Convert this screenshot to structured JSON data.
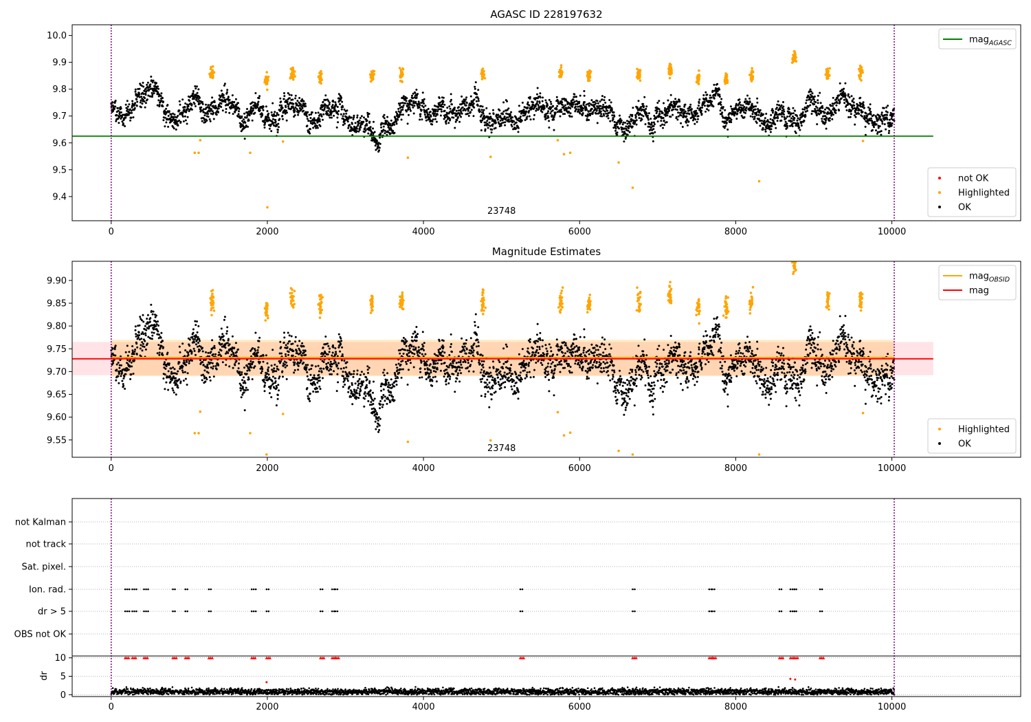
{
  "colors": {
    "ok": "#000000",
    "highlighted": "#ffa500",
    "not_ok": "#ff0000",
    "mag_agasc": "#008000",
    "mag_obsid": "#ffa500",
    "mag": "#ff0000",
    "obs_boundary": "#800080",
    "grid": "#b0b0b0"
  },
  "chart_data": [
    {
      "type": "scatter",
      "title": "AGASC ID 228197632",
      "xlim": [
        -500,
        11650
      ],
      "ylim": [
        9.31,
        10.04
      ],
      "xticks": [
        0,
        2000,
        4000,
        6000,
        8000,
        10000
      ],
      "yticks": [
        9.4,
        9.5,
        9.6,
        9.7,
        9.8,
        9.9,
        10.0
      ],
      "ytick_labels": [
        "9.4",
        "9.5",
        "9.6",
        "9.7",
        "9.8",
        "9.9",
        "10.0"
      ],
      "obs_boundaries": [
        0,
        10030
      ],
      "obs_label": {
        "text": "23748",
        "x": 5000
      },
      "baseline": 9.725,
      "spread": 0.05,
      "hlines": [
        {
          "name": "mag_AGASC",
          "y": 9.625,
          "x": [
            -500,
            10530
          ],
          "color": "#008000"
        }
      ],
      "legend_top": {
        "position": "top-right",
        "entries": [
          {
            "label": "mag",
            "sub": "AGASC",
            "kind": "line",
            "color": "#008000"
          }
        ]
      },
      "legend_bottom": {
        "position": "lower-right",
        "entries": [
          {
            "label": "not OK",
            "kind": "dot",
            "color": "#ff0000"
          },
          {
            "label": "Highlighted",
            "kind": "dot",
            "color": "#ffa500"
          },
          {
            "label": "OK",
            "kind": "dot",
            "color": "#000000"
          }
        ]
      },
      "highlight_clusters": [
        [
          1290,
          9.855
        ],
        [
          1990,
          9.83
        ],
        [
          2320,
          9.86
        ],
        [
          2680,
          9.845
        ],
        [
          3340,
          9.85
        ],
        [
          3720,
          9.855
        ],
        [
          4760,
          9.855
        ],
        [
          5760,
          9.855
        ],
        [
          6120,
          9.85
        ],
        [
          6760,
          9.855
        ],
        [
          7160,
          9.87
        ],
        [
          7520,
          9.84
        ],
        [
          7880,
          9.84
        ],
        [
          8200,
          9.85
        ],
        [
          8750,
          9.92
        ],
        [
          9180,
          9.86
        ],
        [
          9600,
          9.86
        ]
      ],
      "outliers": [
        [
          1070,
          9.563
        ],
        [
          1120,
          9.563
        ],
        [
          1780,
          9.563
        ],
        [
          2000,
          9.36
        ],
        [
          2200,
          9.605
        ],
        [
          3800,
          9.545
        ],
        [
          4860,
          9.548
        ],
        [
          5720,
          9.61
        ],
        [
          5800,
          9.558
        ],
        [
          5880,
          9.563
        ],
        [
          6500,
          9.527
        ],
        [
          6680,
          9.433
        ],
        [
          8300,
          9.457
        ],
        [
          9630,
          9.607
        ],
        [
          1140,
          9.61
        ]
      ]
    },
    {
      "type": "scatter",
      "title": "Magnitude Estimates",
      "xlim": [
        -500,
        11650
      ],
      "ylim": [
        9.512,
        9.942
      ],
      "xticks": [
        0,
        2000,
        4000,
        6000,
        8000,
        10000
      ],
      "yticks": [
        9.55,
        9.6,
        9.65,
        9.7,
        9.75,
        9.8,
        9.85,
        9.9
      ],
      "ytick_labels": [
        "9.55",
        "9.60",
        "9.65",
        "9.70",
        "9.75",
        "9.80",
        "9.85",
        "9.90"
      ],
      "obs_boundaries": [
        0,
        10030
      ],
      "obs_label": {
        "text": "23748",
        "x": 5000
      },
      "baseline": 9.725,
      "spread": 0.05,
      "hlines": [
        {
          "name": "mag_OBSID",
          "y": 9.731,
          "x": [
            0,
            10030
          ],
          "color": "#ffa500"
        },
        {
          "name": "mag",
          "y": 9.728,
          "x": [
            -500,
            10530
          ],
          "color": "#ff0000"
        }
      ],
      "bands": [
        {
          "y": [
            9.692,
            9.765
          ],
          "x": [
            -500,
            10530
          ],
          "color": "#ffc0c8",
          "opacity": 0.45
        },
        {
          "y": [
            9.69,
            9.77
          ],
          "x": [
            0,
            10030
          ],
          "color": "#ffa500",
          "opacity": 0.22
        }
      ],
      "legend_top": {
        "position": "top-right",
        "entries": [
          {
            "label": "mag",
            "sub": "OBSID",
            "kind": "line",
            "color": "#ffa500"
          },
          {
            "label": "mag",
            "sub": "",
            "kind": "line",
            "color": "#ff0000"
          }
        ]
      },
      "legend_bottom": {
        "position": "lower-right",
        "entries": [
          {
            "label": "Highlighted",
            "kind": "dot",
            "color": "#ffa500"
          },
          {
            "label": "OK",
            "kind": "dot",
            "color": "#000000"
          }
        ]
      },
      "highlight_clusters": [
        [
          1290,
          9.855
        ],
        [
          1990,
          9.83
        ],
        [
          2320,
          9.86
        ],
        [
          2680,
          9.845
        ],
        [
          3340,
          9.85
        ],
        [
          3720,
          9.855
        ],
        [
          4760,
          9.855
        ],
        [
          5760,
          9.855
        ],
        [
          6120,
          9.85
        ],
        [
          6760,
          9.855
        ],
        [
          7160,
          9.87
        ],
        [
          7520,
          9.84
        ],
        [
          7880,
          9.84
        ],
        [
          8200,
          9.85
        ],
        [
          8750,
          9.938
        ],
        [
          9180,
          9.86
        ],
        [
          9600,
          9.86
        ]
      ],
      "outliers": [
        [
          1070,
          9.565
        ],
        [
          1120,
          9.565
        ],
        [
          1780,
          9.565
        ],
        [
          1990,
          9.518
        ],
        [
          2200,
          9.607
        ],
        [
          3800,
          9.546
        ],
        [
          4860,
          9.549
        ],
        [
          5720,
          9.611
        ],
        [
          5800,
          9.56
        ],
        [
          5880,
          9.566
        ],
        [
          6500,
          9.526
        ],
        [
          6680,
          9.518
        ],
        [
          8300,
          9.518
        ],
        [
          9630,
          9.609
        ],
        [
          1140,
          9.612
        ]
      ]
    },
    {
      "type": "scatter",
      "title": "",
      "xlim": [
        -500,
        11650
      ],
      "xticks": [
        0,
        2000,
        4000,
        6000,
        8000,
        10000
      ],
      "obs_boundaries": [
        0,
        10030
      ],
      "flag_rows": [
        "not Kalman",
        "not track",
        "Sat. pixel.",
        "Ion. rad.",
        "dr > 5",
        "OBS not OK"
      ],
      "flag_positions": [
        180,
        270,
        420,
        790,
        950,
        1250,
        1800,
        1990,
        2680,
        2830,
        2870,
        5240,
        6680,
        7660,
        7700,
        8560,
        8700,
        8750,
        9080
      ],
      "flagged_rows": [
        "Ion. rad.",
        "dr > 5"
      ],
      "dr_ylim": [
        -0.5,
        10.5
      ],
      "dr_yticks": [
        0,
        5,
        10
      ],
      "dr_ylabel": "dr",
      "dr_clip": 10,
      "dr_outliers": [
        [
          1990,
          3.4
        ],
        [
          8700,
          4.3
        ],
        [
          8760,
          4.1
        ]
      ]
    }
  ]
}
